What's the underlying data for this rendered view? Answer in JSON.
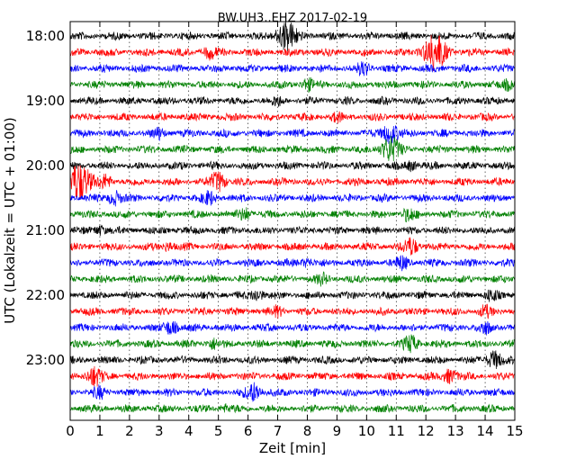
{
  "chart_data": {
    "type": "line",
    "title": "BW.UH3..EHZ 2017-02-19",
    "xlabel": "Zeit  [min]",
    "ylabel": "UTC (Lokalzeit = UTC + 01:00)",
    "xlim": [
      0,
      15
    ],
    "x_ticks": [
      "0",
      "1",
      "2",
      "3",
      "4",
      "5",
      "6",
      "7",
      "8",
      "9",
      "10",
      "11",
      "12",
      "13",
      "14",
      "15"
    ],
    "y_ticks": [
      "18:00",
      "19:00",
      "20:00",
      "21:00",
      "22:00",
      "23:00"
    ],
    "trace_interval_min": 15,
    "grid": "vertical dotted lines at each minute",
    "legend": "none",
    "colors": [
      "#000000",
      "#ff0000",
      "#0000ff",
      "#008000"
    ],
    "traces": [
      {
        "start": "18:00",
        "color": "black",
        "events": [
          {
            "t": 7.3,
            "amp": 2.6
          }
        ]
      },
      {
        "start": "18:15",
        "color": "red",
        "events": [
          {
            "t": 12.3,
            "amp": 3.2
          },
          {
            "t": 4.7,
            "amp": 1.0
          }
        ]
      },
      {
        "start": "18:30",
        "color": "blue",
        "events": [
          {
            "t": 9.9,
            "amp": 1.0
          }
        ]
      },
      {
        "start": "18:45",
        "color": "green",
        "events": [
          {
            "t": 8.0,
            "amp": 0.9
          },
          {
            "t": 14.8,
            "amp": 0.8
          }
        ]
      },
      {
        "start": "19:00",
        "color": "black",
        "events": [
          {
            "t": 7.0,
            "amp": 0.6
          }
        ]
      },
      {
        "start": "19:15",
        "color": "red",
        "events": [
          {
            "t": 9.0,
            "amp": 0.6
          }
        ]
      },
      {
        "start": "19:30",
        "color": "blue",
        "events": [
          {
            "t": 10.8,
            "amp": 1.8
          },
          {
            "t": 3.0,
            "amp": 0.8
          }
        ]
      },
      {
        "start": "19:45",
        "color": "green",
        "events": [
          {
            "t": 10.8,
            "amp": 2.2
          }
        ]
      },
      {
        "start": "20:00",
        "color": "black",
        "events": [
          {
            "t": 11.5,
            "amp": 0.8
          }
        ]
      },
      {
        "start": "20:15",
        "color": "red",
        "events": [
          {
            "t": 0.3,
            "amp": 3.4
          },
          {
            "t": 5.0,
            "amp": 1.6
          },
          {
            "t": 1.2,
            "amp": 1.0
          }
        ]
      },
      {
        "start": "20:30",
        "color": "blue",
        "events": [
          {
            "t": 1.5,
            "amp": 1.2
          },
          {
            "t": 4.7,
            "amp": 1.0
          }
        ]
      },
      {
        "start": "20:45",
        "color": "green",
        "events": [
          {
            "t": 5.9,
            "amp": 1.0
          },
          {
            "t": 11.4,
            "amp": 1.0
          }
        ]
      },
      {
        "start": "21:00",
        "color": "black",
        "events": [
          {
            "t": 1.0,
            "amp": 0.8
          }
        ]
      },
      {
        "start": "21:15",
        "color": "red",
        "events": [
          {
            "t": 11.5,
            "amp": 1.4
          },
          {
            "t": 3.3,
            "amp": 0.7
          }
        ]
      },
      {
        "start": "21:30",
        "color": "blue",
        "events": [
          {
            "t": 11.2,
            "amp": 1.0
          },
          {
            "t": 8.0,
            "amp": 0.7
          }
        ]
      },
      {
        "start": "21:45",
        "color": "green",
        "events": [
          {
            "t": 8.5,
            "amp": 0.7
          }
        ]
      },
      {
        "start": "22:00",
        "color": "black",
        "events": [
          {
            "t": 6.3,
            "amp": 1.0
          },
          {
            "t": 14.2,
            "amp": 0.8
          }
        ]
      },
      {
        "start": "22:15",
        "color": "red",
        "events": [
          {
            "t": 7.0,
            "amp": 0.7
          },
          {
            "t": 14.0,
            "amp": 0.8
          }
        ]
      },
      {
        "start": "22:30",
        "color": "blue",
        "events": [
          {
            "t": 3.4,
            "amp": 1.2
          },
          {
            "t": 14.0,
            "amp": 0.9
          }
        ]
      },
      {
        "start": "22:45",
        "color": "green",
        "events": [
          {
            "t": 11.5,
            "amp": 1.3
          },
          {
            "t": 4.8,
            "amp": 0.8
          }
        ]
      },
      {
        "start": "23:00",
        "color": "black",
        "events": [
          {
            "t": 14.3,
            "amp": 1.5
          }
        ]
      },
      {
        "start": "23:15",
        "color": "red",
        "events": [
          {
            "t": 0.8,
            "amp": 1.6
          },
          {
            "t": 12.8,
            "amp": 1.2
          }
        ]
      },
      {
        "start": "23:30",
        "color": "blue",
        "events": [
          {
            "t": 6.2,
            "amp": 1.6
          },
          {
            "t": 1.0,
            "amp": 0.8
          }
        ]
      },
      {
        "start": "23:45",
        "color": "green",
        "events": [
          {
            "t": 5.2,
            "amp": 0.5
          }
        ]
      }
    ]
  }
}
